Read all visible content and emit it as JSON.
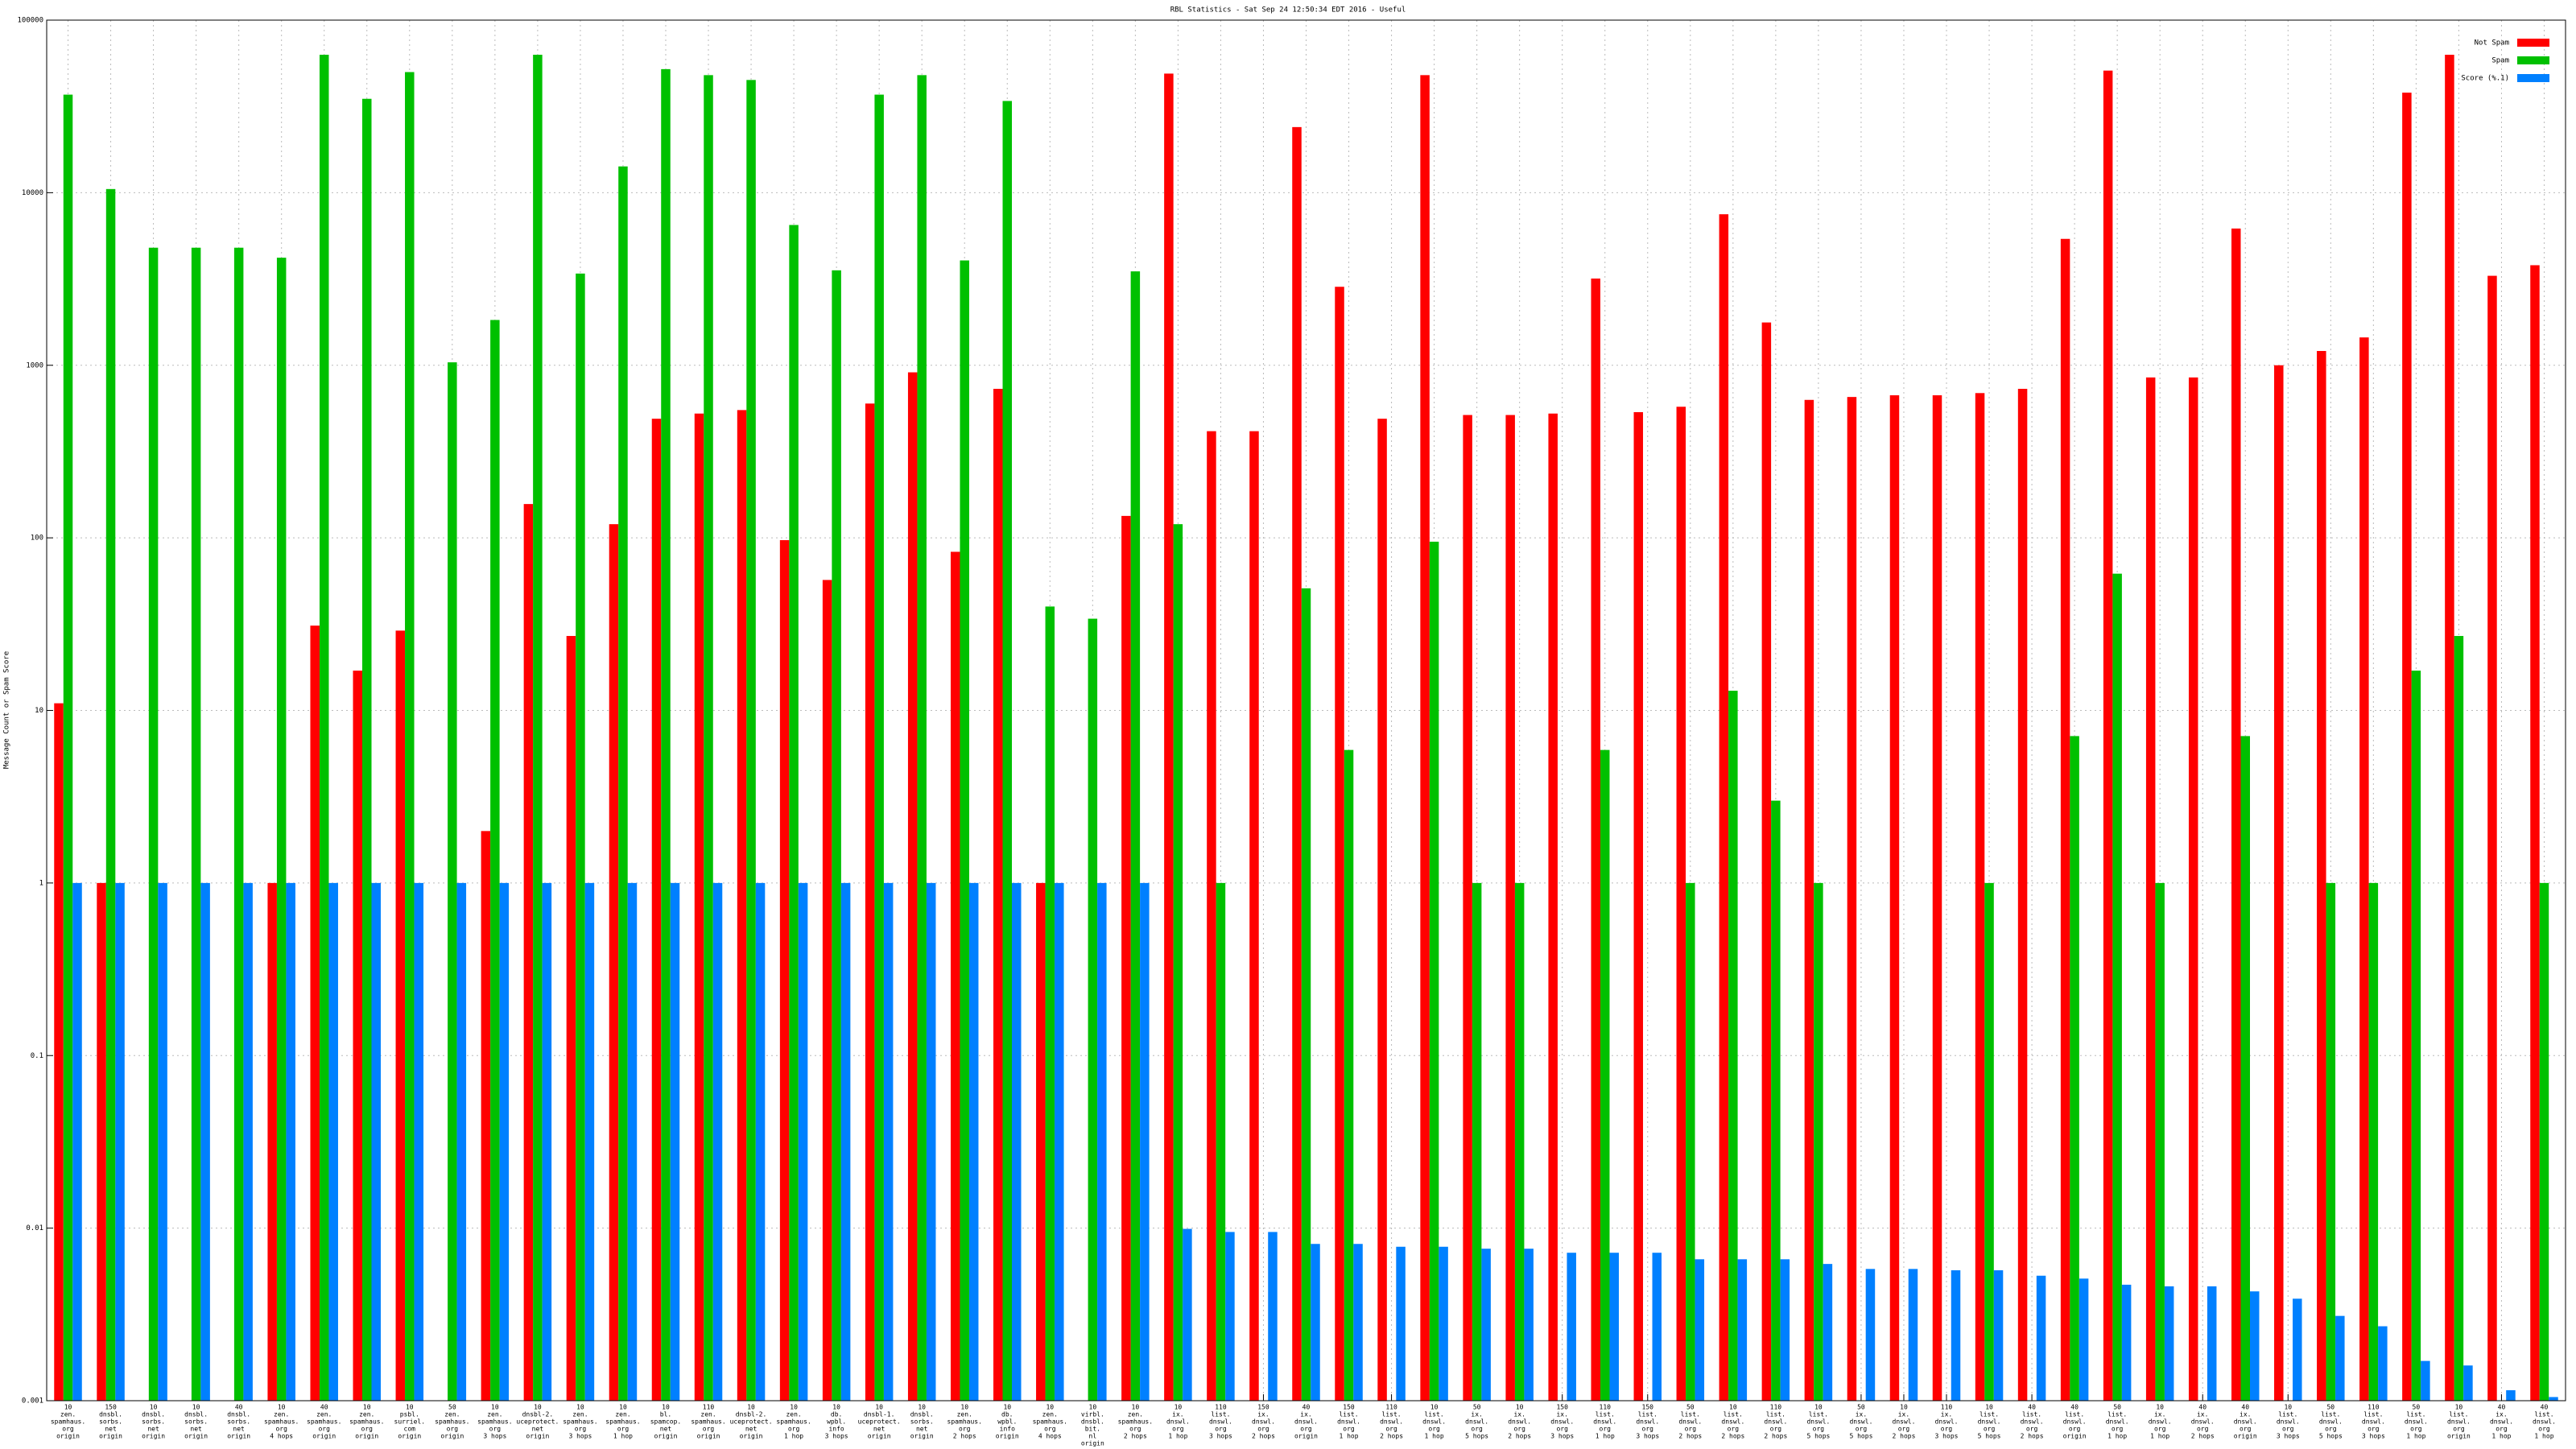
{
  "chart_data": {
    "type": "bar",
    "title": "RBL Statistics - Sat Sep 24 12:50:34 EDT 2016 - Useful",
    "ylabel": "Message Count or Spam Score",
    "log_scale": true,
    "grid": true,
    "legend": "top-right",
    "ylim": [
      0.001,
      100000
    ],
    "yticks": [
      0.001,
      0.01,
      0.1,
      1,
      10,
      100,
      1000,
      10000,
      100000
    ],
    "categories": [
      [
        "10",
        "zen.",
        "spamhaus.",
        "org",
        "origin"
      ],
      [
        "150",
        "dnsbl.",
        "sorbs.",
        "net",
        "origin"
      ],
      [
        "10",
        "dnsbl.",
        "sorbs.",
        "net",
        "origin"
      ],
      [
        "10",
        "dnsbl.",
        "sorbs.",
        "net",
        "origin"
      ],
      [
        "40",
        "dnsbl.",
        "sorbs.",
        "net",
        "origin"
      ],
      [
        "10",
        "zen.",
        "spamhaus.",
        "org",
        "4 hops"
      ],
      [
        "40",
        "zen.",
        "spamhaus.",
        "org",
        "origin"
      ],
      [
        "10",
        "zen.",
        "spamhaus.",
        "org",
        "origin"
      ],
      [
        "10",
        "psbl.",
        "surriel.",
        "com",
        "origin"
      ],
      [
        "50",
        "zen.",
        "spamhaus.",
        "org",
        "origin"
      ],
      [
        "10",
        "zen.",
        "spamhaus.",
        "org",
        "3 hops"
      ],
      [
        "10",
        "dnsbl-2.",
        "uceprotect.",
        "net",
        "origin"
      ],
      [
        "10",
        "zen.",
        "spamhaus.",
        "org",
        "3 hops"
      ],
      [
        "10",
        "zen.",
        "spamhaus.",
        "org",
        "1 hop"
      ],
      [
        "10",
        "bl.",
        "spamcop.",
        "net",
        "origin"
      ],
      [
        "110",
        "zen.",
        "spamhaus.",
        "org",
        "origin"
      ],
      [
        "10",
        "dnsbl-2.",
        "uceprotect.",
        "net",
        "origin"
      ],
      [
        "10",
        "zen.",
        "spamhaus.",
        "org",
        "1 hop"
      ],
      [
        "10",
        "db.",
        "wpbl.",
        "info",
        "3 hops"
      ],
      [
        "10",
        "dnsbl-1.",
        "uceprotect.",
        "net",
        "origin"
      ],
      [
        "10",
        "dnsbl.",
        "sorbs.",
        "net",
        "origin"
      ],
      [
        "10",
        "zen.",
        "spamhaus.",
        "org",
        "2 hops"
      ],
      [
        "10",
        "db.",
        "wpbl.",
        "info",
        "origin"
      ],
      [
        "10",
        "zen.",
        "spamhaus.",
        "org",
        "4 hops"
      ],
      [
        "10",
        "virbl.",
        "dnsbl.",
        "bit.",
        "nl",
        "origin"
      ],
      [
        "10",
        "zen.",
        "spamhaus.",
        "org",
        "2 hops"
      ],
      [
        "10",
        "ix.",
        "dnswl.",
        "org",
        "1 hop"
      ],
      [
        "110",
        "list.",
        "dnswl.",
        "org",
        "3 hops"
      ],
      [
        "150",
        "ix.",
        "dnswl.",
        "org",
        "2 hops"
      ],
      [
        "40",
        "ix.",
        "dnswl.",
        "org",
        "origin"
      ],
      [
        "150",
        "list.",
        "dnswl.",
        "org",
        "1 hop"
      ],
      [
        "110",
        "list.",
        "dnswl.",
        "org",
        "2 hops"
      ],
      [
        "10",
        "list.",
        "dnswl.",
        "org",
        "1 hop"
      ],
      [
        "50",
        "ix.",
        "dnswl.",
        "org",
        "5 hops"
      ],
      [
        "10",
        "ix.",
        "dnswl.",
        "org",
        "2 hops"
      ],
      [
        "150",
        "ix.",
        "dnswl.",
        "org",
        "3 hops"
      ],
      [
        "110",
        "list.",
        "dnswl.",
        "org",
        "1 hop"
      ],
      [
        "150",
        "list.",
        "dnswl.",
        "org",
        "3 hops"
      ],
      [
        "50",
        "list.",
        "dnswl.",
        "org",
        "2 hops"
      ],
      [
        "10",
        "list.",
        "dnswl.",
        "org",
        "2 hops"
      ],
      [
        "110",
        "list.",
        "dnswl.",
        "org",
        "2 hops"
      ],
      [
        "10",
        "list.",
        "dnswl.",
        "org",
        "5 hops"
      ],
      [
        "50",
        "ix.",
        "dnswl.",
        "org",
        "5 hops"
      ],
      [
        "10",
        "ix.",
        "dnswl.",
        "org",
        "2 hops"
      ],
      [
        "110",
        "ix.",
        "dnswl.",
        "org",
        "3 hops"
      ],
      [
        "10",
        "list.",
        "dnswl.",
        "org",
        "5 hops"
      ],
      [
        "40",
        "list.",
        "dnswl.",
        "org",
        "2 hops"
      ],
      [
        "40",
        "list.",
        "dnswl.",
        "org",
        "origin"
      ],
      [
        "50",
        "list.",
        "dnswl.",
        "org",
        "1 hop"
      ],
      [
        "10",
        "ix.",
        "dnswl.",
        "org",
        "1 hop"
      ],
      [
        "40",
        "ix.",
        "dnswl.",
        "org",
        "2 hops"
      ],
      [
        "40",
        "ix.",
        "dnswl.",
        "org",
        "origin"
      ],
      [
        "10",
        "list.",
        "dnswl.",
        "org",
        "3 hops"
      ],
      [
        "50",
        "list.",
        "dnswl.",
        "org",
        "5 hops"
      ],
      [
        "110",
        "list.",
        "dnswl.",
        "org",
        "3 hops"
      ],
      [
        "50",
        "list.",
        "dnswl.",
        "org",
        "1 hop"
      ],
      [
        "10",
        "list.",
        "dnswl.",
        "org",
        "origin"
      ],
      [
        "40",
        "ix.",
        "dnswl.",
        "org",
        "1 hop"
      ],
      [
        "40",
        "list.",
        "dnswl.",
        "org",
        "1 hop"
      ]
    ],
    "series": [
      {
        "name": "Not Spam",
        "color": "#ff0000",
        "values": [
          11,
          1,
          null,
          null,
          null,
          1,
          31,
          17,
          29,
          null,
          2,
          157,
          27,
          120,
          490,
          525,
          550,
          97,
          57,
          600,
          910,
          83,
          730,
          1,
          null,
          134,
          49000,
          415,
          415,
          24000,
          2850,
          490,
          48000,
          515,
          515,
          525,
          3180,
          535,
          575,
          7500,
          1770,
          630,
          655,
          670,
          670,
          690,
          730,
          5400,
          51000,
          850,
          850,
          6200,
          1000,
          1210,
          1450,
          38000,
          63000,
          3300,
          3800
        ]
      },
      {
        "name": "Spam",
        "color": "#00c000",
        "values": [
          37000,
          10500,
          4800,
          4800,
          4800,
          4200,
          63000,
          35000,
          50000,
          1040,
          1830,
          63000,
          3400,
          14200,
          52000,
          48000,
          45000,
          6500,
          3550,
          37000,
          48000,
          4050,
          34000,
          40,
          34,
          3500,
          120,
          1,
          null,
          51,
          5.9,
          null,
          95,
          1,
          1,
          null,
          5.9,
          null,
          1,
          13,
          3,
          1,
          null,
          null,
          null,
          1,
          null,
          7.1,
          62,
          1,
          null,
          7.1,
          null,
          1,
          1,
          17,
          27,
          null,
          1
        ]
      },
      {
        "name": "Score (%.1)",
        "color": "#0080ff",
        "values": [
          1,
          1,
          1,
          1,
          1,
          1,
          1,
          1,
          1,
          1,
          1,
          1,
          1,
          1,
          1,
          1,
          1,
          1,
          1,
          1,
          1,
          1,
          1,
          1,
          1,
          1,
          0.0099,
          0.0095,
          0.0095,
          0.0081,
          0.0081,
          0.0078,
          0.0078,
          0.0076,
          0.0076,
          0.0072,
          0.0072,
          0.0072,
          0.0066,
          0.0066,
          0.0066,
          0.0062,
          0.0058,
          0.0058,
          0.0057,
          0.0057,
          0.0053,
          0.0051,
          0.0047,
          0.0046,
          0.0046,
          0.0043,
          0.0039,
          0.0031,
          0.0027,
          0.0017,
          0.0016,
          0.00115,
          0.00105
        ]
      }
    ]
  }
}
